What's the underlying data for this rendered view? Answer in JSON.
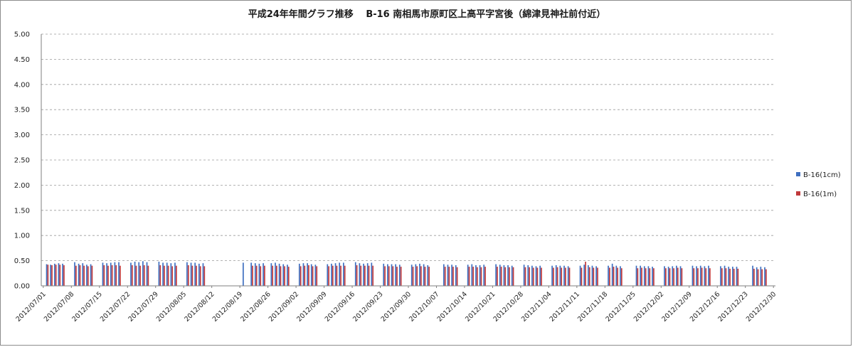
{
  "chart_data": {
    "type": "bar",
    "title": "平成24年年間グラフ推移　 B-16 南相馬市原町区上高平字宮後（綿津見神社前付近）",
    "xlabel": "",
    "ylabel": "",
    "ylim": [
      0,
      5
    ],
    "yticks": [
      "0.00",
      "0.50",
      "1.00",
      "1.50",
      "2.00",
      "2.50",
      "3.00",
      "3.50",
      "4.00",
      "4.50",
      "5.00"
    ],
    "grid": "horizontal dashed",
    "legend_position": "right",
    "x_start": "2012/07/01",
    "x_end": "2012/12/30",
    "xticks": [
      "2012/07/01",
      "2012/07/08",
      "2012/07/15",
      "2012/07/22",
      "2012/07/29",
      "2012/08/05",
      "2012/08/12",
      "2012/08/19",
      "2012/08/26",
      "2012/09/02",
      "2012/09/09",
      "2012/09/16",
      "2012/09/23",
      "2012/09/30",
      "2012/10/07",
      "2012/10/14",
      "2012/10/21",
      "2012/10/28",
      "2012/11/04",
      "2012/11/11",
      "2012/11/18",
      "2012/11/25",
      "2012/12/02",
      "2012/12/09",
      "2012/12/16",
      "2012/12/23",
      "2012/12/30"
    ],
    "series": [
      {
        "name": "B-16(1cm)",
        "color": "#3f6fc0",
        "points": [
          [
            "2012/07/02",
            0.43
          ],
          [
            "2012/07/03",
            0.42
          ],
          [
            "2012/07/04",
            0.44
          ],
          [
            "2012/07/05",
            0.45
          ],
          [
            "2012/07/06",
            0.44
          ],
          [
            "2012/07/09",
            0.47
          ],
          [
            "2012/07/10",
            0.44
          ],
          [
            "2012/07/11",
            0.45
          ],
          [
            "2012/07/12",
            0.42
          ],
          [
            "2012/07/13",
            0.43
          ],
          [
            "2012/07/16",
            0.46
          ],
          [
            "2012/07/17",
            0.45
          ],
          [
            "2012/07/18",
            0.46
          ],
          [
            "2012/07/19",
            0.47
          ],
          [
            "2012/07/20",
            0.47
          ],
          [
            "2012/07/23",
            0.46
          ],
          [
            "2012/07/24",
            0.48
          ],
          [
            "2012/07/25",
            0.47
          ],
          [
            "2012/07/26",
            0.49
          ],
          [
            "2012/07/27",
            0.47
          ],
          [
            "2012/07/30",
            0.48
          ],
          [
            "2012/07/31",
            0.46
          ],
          [
            "2012/08/01",
            0.46
          ],
          [
            "2012/08/02",
            0.45
          ],
          [
            "2012/08/03",
            0.46
          ],
          [
            "2012/08/06",
            0.47
          ],
          [
            "2012/08/07",
            0.46
          ],
          [
            "2012/08/08",
            0.46
          ],
          [
            "2012/08/09",
            0.44
          ],
          [
            "2012/08/10",
            0.45
          ],
          [
            "2012/08/20",
            0.46
          ],
          [
            "2012/08/22",
            0.46
          ],
          [
            "2012/08/23",
            0.45
          ],
          [
            "2012/08/24",
            0.44
          ],
          [
            "2012/08/25",
            0.45
          ],
          [
            "2012/08/27",
            0.45
          ],
          [
            "2012/08/28",
            0.46
          ],
          [
            "2012/08/29",
            0.44
          ],
          [
            "2012/08/30",
            0.43
          ],
          [
            "2012/08/31",
            0.42
          ],
          [
            "2012/09/03",
            0.44
          ],
          [
            "2012/09/04",
            0.45
          ],
          [
            "2012/09/05",
            0.45
          ],
          [
            "2012/09/06",
            0.43
          ],
          [
            "2012/09/07",
            0.42
          ],
          [
            "2012/09/10",
            0.43
          ],
          [
            "2012/09/11",
            0.44
          ],
          [
            "2012/09/12",
            0.45
          ],
          [
            "2012/09/13",
            0.46
          ],
          [
            "2012/09/14",
            0.46
          ],
          [
            "2012/09/17",
            0.47
          ],
          [
            "2012/09/18",
            0.45
          ],
          [
            "2012/09/19",
            0.44
          ],
          [
            "2012/09/20",
            0.45
          ],
          [
            "2012/09/21",
            0.46
          ],
          [
            "2012/09/24",
            0.44
          ],
          [
            "2012/09/25",
            0.43
          ],
          [
            "2012/09/26",
            0.43
          ],
          [
            "2012/09/27",
            0.43
          ],
          [
            "2012/09/28",
            0.42
          ],
          [
            "2012/10/01",
            0.42
          ],
          [
            "2012/10/02",
            0.43
          ],
          [
            "2012/10/03",
            0.44
          ],
          [
            "2012/10/04",
            0.43
          ],
          [
            "2012/10/05",
            0.41
          ],
          [
            "2012/10/09",
            0.43
          ],
          [
            "2012/10/10",
            0.42
          ],
          [
            "2012/10/11",
            0.42
          ],
          [
            "2012/10/12",
            0.41
          ],
          [
            "2012/10/15",
            0.42
          ],
          [
            "2012/10/16",
            0.43
          ],
          [
            "2012/10/17",
            0.41
          ],
          [
            "2012/10/18",
            0.41
          ],
          [
            "2012/10/19",
            0.42
          ],
          [
            "2012/10/22",
            0.43
          ],
          [
            "2012/10/23",
            0.42
          ],
          [
            "2012/10/24",
            0.41
          ],
          [
            "2012/10/25",
            0.41
          ],
          [
            "2012/10/26",
            0.4
          ],
          [
            "2012/10/29",
            0.42
          ],
          [
            "2012/10/30",
            0.41
          ],
          [
            "2012/10/31",
            0.4
          ],
          [
            "2012/11/01",
            0.39
          ],
          [
            "2012/11/02",
            0.4
          ],
          [
            "2012/11/05",
            0.4
          ],
          [
            "2012/11/06",
            0.41
          ],
          [
            "2012/11/07",
            0.4
          ],
          [
            "2012/11/08",
            0.4
          ],
          [
            "2012/11/09",
            0.39
          ],
          [
            "2012/11/12",
            0.4
          ],
          [
            "2012/11/13",
            0.42
          ],
          [
            "2012/11/14",
            0.41
          ],
          [
            "2012/11/15",
            0.4
          ],
          [
            "2012/11/16",
            0.39
          ],
          [
            "2012/11/19",
            0.4
          ],
          [
            "2012/11/20",
            0.44
          ],
          [
            "2012/11/21",
            0.4
          ],
          [
            "2012/11/22",
            0.39
          ],
          [
            "2012/11/26",
            0.4
          ],
          [
            "2012/11/27",
            0.4
          ],
          [
            "2012/11/28",
            0.39
          ],
          [
            "2012/11/29",
            0.39
          ],
          [
            "2012/11/30",
            0.38
          ],
          [
            "2012/12/03",
            0.39
          ],
          [
            "2012/12/04",
            0.38
          ],
          [
            "2012/12/05",
            0.39
          ],
          [
            "2012/12/06",
            0.4
          ],
          [
            "2012/12/07",
            0.39
          ],
          [
            "2012/12/10",
            0.4
          ],
          [
            "2012/12/11",
            0.39
          ],
          [
            "2012/12/12",
            0.4
          ],
          [
            "2012/12/13",
            0.39
          ],
          [
            "2012/12/14",
            0.4
          ],
          [
            "2012/12/17",
            0.39
          ],
          [
            "2012/12/18",
            0.4
          ],
          [
            "2012/12/19",
            0.38
          ],
          [
            "2012/12/20",
            0.38
          ],
          [
            "2012/12/21",
            0.38
          ],
          [
            "2012/12/25",
            0.4
          ],
          [
            "2012/12/26",
            0.37
          ],
          [
            "2012/12/27",
            0.38
          ],
          [
            "2012/12/28",
            0.37
          ]
        ]
      },
      {
        "name": "B-16(1m)",
        "color": "#c0393b",
        "points": [
          [
            "2012/07/02",
            0.42
          ],
          [
            "2012/07/03",
            0.41
          ],
          [
            "2012/07/04",
            0.42
          ],
          [
            "2012/07/05",
            0.42
          ],
          [
            "2012/07/06",
            0.41
          ],
          [
            "2012/07/09",
            0.4
          ],
          [
            "2012/07/10",
            0.41
          ],
          [
            "2012/07/11",
            0.4
          ],
          [
            "2012/07/12",
            0.39
          ],
          [
            "2012/07/13",
            0.4
          ],
          [
            "2012/07/16",
            0.41
          ],
          [
            "2012/07/17",
            0.4
          ],
          [
            "2012/07/18",
            0.41
          ],
          [
            "2012/07/19",
            0.41
          ],
          [
            "2012/07/20",
            0.4
          ],
          [
            "2012/07/23",
            0.41
          ],
          [
            "2012/07/24",
            0.4
          ],
          [
            "2012/07/25",
            0.4
          ],
          [
            "2012/07/26",
            0.41
          ],
          [
            "2012/07/27",
            0.4
          ],
          [
            "2012/07/30",
            0.41
          ],
          [
            "2012/07/31",
            0.4
          ],
          [
            "2012/08/01",
            0.4
          ],
          [
            "2012/08/02",
            0.39
          ],
          [
            "2012/08/03",
            0.4
          ],
          [
            "2012/08/06",
            0.41
          ],
          [
            "2012/08/07",
            0.4
          ],
          [
            "2012/08/08",
            0.4
          ],
          [
            "2012/08/09",
            0.39
          ],
          [
            "2012/08/10",
            0.39
          ],
          [
            "2012/08/22",
            0.4
          ],
          [
            "2012/08/23",
            0.4
          ],
          [
            "2012/08/24",
            0.39
          ],
          [
            "2012/08/25",
            0.4
          ],
          [
            "2012/08/27",
            0.4
          ],
          [
            "2012/08/28",
            0.4
          ],
          [
            "2012/08/29",
            0.39
          ],
          [
            "2012/08/30",
            0.39
          ],
          [
            "2012/08/31",
            0.38
          ],
          [
            "2012/09/03",
            0.39
          ],
          [
            "2012/09/04",
            0.4
          ],
          [
            "2012/09/05",
            0.41
          ],
          [
            "2012/09/06",
            0.39
          ],
          [
            "2012/09/07",
            0.39
          ],
          [
            "2012/09/10",
            0.39
          ],
          [
            "2012/09/11",
            0.4
          ],
          [
            "2012/09/12",
            0.4
          ],
          [
            "2012/09/13",
            0.4
          ],
          [
            "2012/09/14",
            0.4
          ],
          [
            "2012/09/17",
            0.41
          ],
          [
            "2012/09/18",
            0.4
          ],
          [
            "2012/09/19",
            0.4
          ],
          [
            "2012/09/20",
            0.4
          ],
          [
            "2012/09/21",
            0.4
          ],
          [
            "2012/09/24",
            0.39
          ],
          [
            "2012/09/25",
            0.39
          ],
          [
            "2012/09/26",
            0.39
          ],
          [
            "2012/09/27",
            0.38
          ],
          [
            "2012/09/28",
            0.38
          ],
          [
            "2012/10/01",
            0.38
          ],
          [
            "2012/10/02",
            0.39
          ],
          [
            "2012/10/03",
            0.39
          ],
          [
            "2012/10/04",
            0.38
          ],
          [
            "2012/10/05",
            0.38
          ],
          [
            "2012/10/09",
            0.38
          ],
          [
            "2012/10/10",
            0.38
          ],
          [
            "2012/10/11",
            0.38
          ],
          [
            "2012/10/12",
            0.37
          ],
          [
            "2012/10/15",
            0.38
          ],
          [
            "2012/10/16",
            0.38
          ],
          [
            "2012/10/17",
            0.37
          ],
          [
            "2012/10/18",
            0.37
          ],
          [
            "2012/10/19",
            0.38
          ],
          [
            "2012/10/22",
            0.38
          ],
          [
            "2012/10/23",
            0.38
          ],
          [
            "2012/10/24",
            0.37
          ],
          [
            "2012/10/25",
            0.37
          ],
          [
            "2012/10/26",
            0.37
          ],
          [
            "2012/10/29",
            0.37
          ],
          [
            "2012/10/30",
            0.37
          ],
          [
            "2012/10/31",
            0.36
          ],
          [
            "2012/11/01",
            0.36
          ],
          [
            "2012/11/02",
            0.36
          ],
          [
            "2012/11/05",
            0.36
          ],
          [
            "2012/11/06",
            0.37
          ],
          [
            "2012/11/07",
            0.36
          ],
          [
            "2012/11/08",
            0.36
          ],
          [
            "2012/11/09",
            0.36
          ],
          [
            "2012/11/12",
            0.36
          ],
          [
            "2012/11/13",
            0.48
          ],
          [
            "2012/11/14",
            0.37
          ],
          [
            "2012/11/15",
            0.36
          ],
          [
            "2012/11/16",
            0.36
          ],
          [
            "2012/11/19",
            0.36
          ],
          [
            "2012/11/20",
            0.38
          ],
          [
            "2012/11/21",
            0.36
          ],
          [
            "2012/11/22",
            0.35
          ],
          [
            "2012/11/26",
            0.35
          ],
          [
            "2012/11/27",
            0.36
          ],
          [
            "2012/11/28",
            0.35
          ],
          [
            "2012/11/29",
            0.35
          ],
          [
            "2012/11/30",
            0.35
          ],
          [
            "2012/12/03",
            0.35
          ],
          [
            "2012/12/04",
            0.35
          ],
          [
            "2012/12/05",
            0.35
          ],
          [
            "2012/12/06",
            0.36
          ],
          [
            "2012/12/07",
            0.35
          ],
          [
            "2012/12/10",
            0.35
          ],
          [
            "2012/12/11",
            0.35
          ],
          [
            "2012/12/12",
            0.36
          ],
          [
            "2012/12/13",
            0.35
          ],
          [
            "2012/12/14",
            0.35
          ],
          [
            "2012/12/17",
            0.35
          ],
          [
            "2012/12/18",
            0.35
          ],
          [
            "2012/12/19",
            0.34
          ],
          [
            "2012/12/20",
            0.34
          ],
          [
            "2012/12/21",
            0.34
          ],
          [
            "2012/12/25",
            0.34
          ],
          [
            "2012/12/26",
            0.33
          ],
          [
            "2012/12/27",
            0.33
          ],
          [
            "2012/12/28",
            0.33
          ]
        ]
      }
    ]
  }
}
